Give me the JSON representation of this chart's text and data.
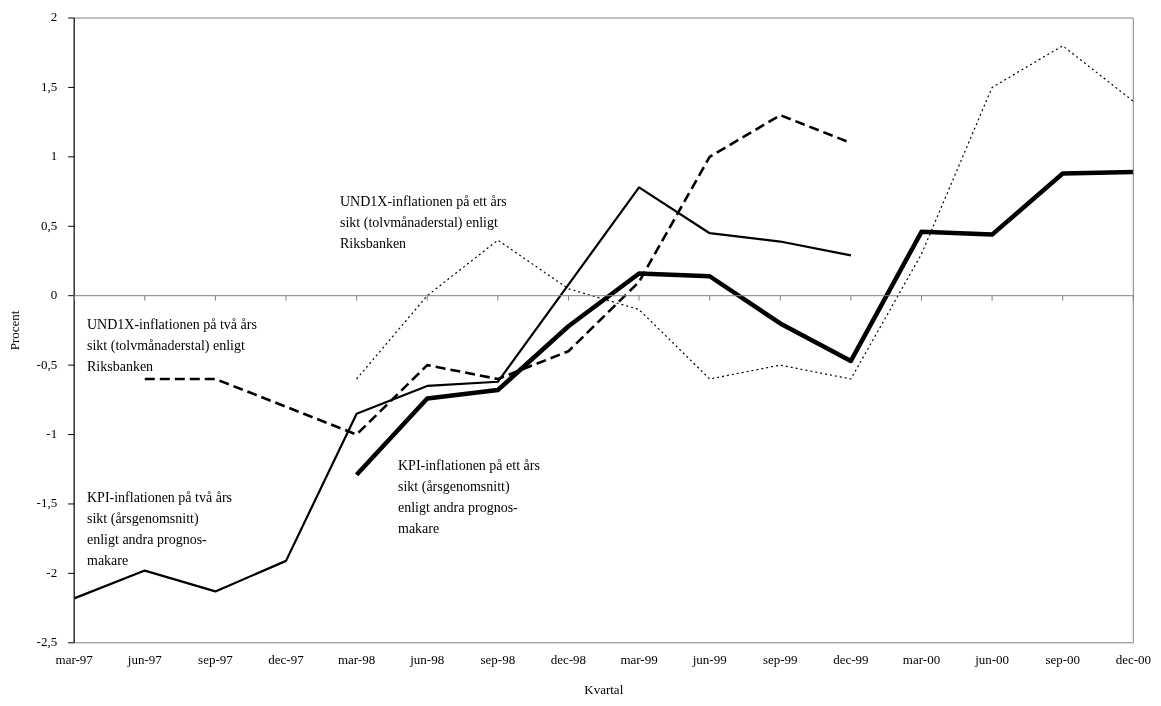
{
  "chart_data": {
    "type": "line",
    "xlabel": "Kvartal",
    "ylabel": "Procent",
    "categories": [
      "mar-97",
      "jun-97",
      "sep-97",
      "dec-97",
      "mar-98",
      "jun-98",
      "sep-98",
      "dec-98",
      "mar-99",
      "jun-99",
      "sep-99",
      "dec-99",
      "mar-00",
      "jun-00",
      "sep-00",
      "dec-00"
    ],
    "series": [
      {
        "color": "#000000",
        "line_style": "solid",
        "values": [
          -2.18,
          -1.98,
          -2.13,
          -1.91,
          -0.85,
          -0.65,
          -0.62,
          0.08,
          0.78,
          0.45,
          0.39,
          0.29,
          null,
          null,
          null,
          null
        ]
      },
      {
        "color": "#000000",
        "line_style": "solid",
        "values": [
          null,
          null,
          null,
          null,
          -1.29,
          -0.74,
          -0.68,
          -0.22,
          0.16,
          0.14,
          -0.2,
          -0.47,
          0.46,
          0.44,
          0.88,
          0.89
        ]
      },
      {
        "color": "#000000",
        "line_style": "dashed",
        "values": [
          null,
          -0.6,
          -0.6,
          -0.8,
          -1.0,
          -0.5,
          -0.6,
          -0.4,
          0.1,
          1.0,
          1.3,
          1.1,
          null,
          null,
          null,
          null
        ]
      },
      {
        "color": "#000000",
        "line_style": "dotted",
        "values": [
          null,
          null,
          null,
          null,
          -0.6,
          0.0,
          0.4,
          0.05,
          -0.1,
          -0.6,
          -0.5,
          -0.6,
          0.3,
          1.5,
          1.8,
          1.4
        ]
      }
    ],
    "ylim": [
      -2.5,
      2
    ],
    "yticks": [
      {
        "value": -2.5,
        "label": "-2,5"
      },
      -2,
      {
        "value": -1.5,
        "label": "-1,5"
      },
      -1,
      {
        "value": -0.5,
        "label": "-0,5"
      },
      0,
      {
        "value": 0.5,
        "label": "0,5"
      },
      1,
      {
        "value": 1.5,
        "label": "1,5"
      },
      2
    ],
    "grid": false,
    "legend": false,
    "marker": "none",
    "ref_lines": [
      {
        "axis": "y",
        "value": 0,
        "color": "#808080"
      }
    ],
    "annotations": [
      "UND1X-inflationen på ett års\nsikt (tolvmånaderstal) enligt\nRiksbanken",
      "UND1X-inflationen på två års\nsikt (tolvmånaderstal) enligt\nRiksbanken",
      "KPI-inflationen på två års\nsikt (årsgenomsnitt)\nenligt andra prognos-\nmakare",
      "KPI-inflationen på ett års\nsikt (årsgenomsnitt)\nenligt andra prognos-\nmakare"
    ]
  }
}
